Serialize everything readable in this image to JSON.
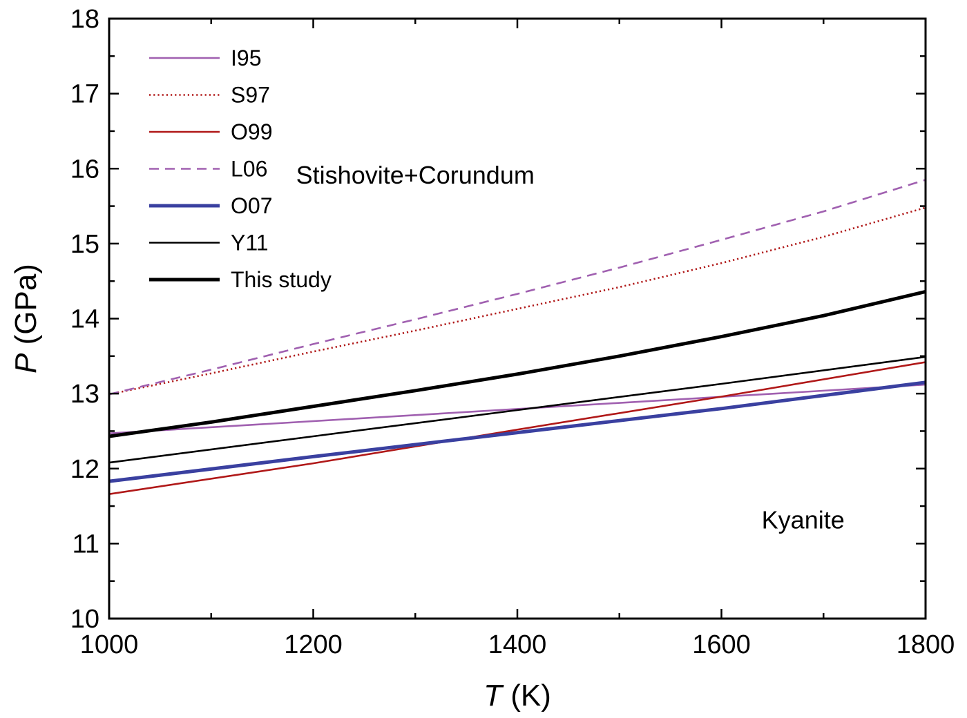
{
  "chart_data": {
    "type": "line",
    "xlabel": {
      "italic": "T",
      "rest": " (K)"
    },
    "ylabel": {
      "italic": "P",
      "rest": " (GPa)"
    },
    "xlim": [
      1000,
      1800
    ],
    "ylim": [
      10,
      18
    ],
    "xticks": [
      "1000",
      "1200",
      "1400",
      "1600",
      "1800"
    ],
    "yticks": [
      "10",
      "11",
      "12",
      "13",
      "14",
      "15",
      "16",
      "17",
      "18"
    ],
    "grid": false,
    "legend_position": "top-left",
    "annotations": [
      {
        "text": "Stishovite+Corundum",
        "x": 1300,
        "y": 15.8
      },
      {
        "text": "Kyanite",
        "x": 1680,
        "y": 11.2
      }
    ],
    "series": [
      {
        "name": "I95",
        "color": "#a060b0",
        "style": "solid",
        "weight": "thin",
        "x": [
          1000,
          1800
        ],
        "y": [
          12.47,
          13.12
        ]
      },
      {
        "name": "S97",
        "color": "#b01818",
        "style": "dotted",
        "weight": "thin",
        "x": [
          1000,
          1100,
          1200,
          1300,
          1400,
          1500,
          1600,
          1700,
          1800
        ],
        "y": [
          12.99,
          13.27,
          13.56,
          13.84,
          14.13,
          14.42,
          14.74,
          15.09,
          15.48
        ]
      },
      {
        "name": "O99",
        "color": "#b01818",
        "style": "solid",
        "weight": "thin",
        "x": [
          1000,
          1200,
          1400,
          1600,
          1800
        ],
        "y": [
          11.66,
          12.07,
          12.52,
          12.96,
          13.42
        ]
      },
      {
        "name": "L06",
        "color": "#a060b0",
        "style": "dashed",
        "weight": "thin",
        "x": [
          1000,
          1100,
          1200,
          1300,
          1400,
          1500,
          1600,
          1700,
          1800
        ],
        "y": [
          12.99,
          13.32,
          13.66,
          13.99,
          14.33,
          14.68,
          15.05,
          15.43,
          15.85
        ]
      },
      {
        "name": "O07",
        "color": "#3a40a0",
        "style": "solid",
        "weight": "thick",
        "x": [
          1000,
          1200,
          1400,
          1600,
          1800
        ],
        "y": [
          11.83,
          12.16,
          12.48,
          12.8,
          13.15
        ]
      },
      {
        "name": "Y11",
        "color": "#000000",
        "style": "solid",
        "weight": "thin",
        "x": [
          1000,
          1200,
          1400,
          1600,
          1800
        ],
        "y": [
          12.08,
          12.43,
          12.78,
          13.13,
          13.49
        ]
      },
      {
        "name": "This study",
        "color": "#000000",
        "style": "solid",
        "weight": "thick",
        "x": [
          1000,
          1100,
          1200,
          1300,
          1400,
          1500,
          1600,
          1700,
          1800
        ],
        "y": [
          12.43,
          12.62,
          12.83,
          13.04,
          13.26,
          13.5,
          13.76,
          14.04,
          14.36
        ]
      }
    ]
  }
}
